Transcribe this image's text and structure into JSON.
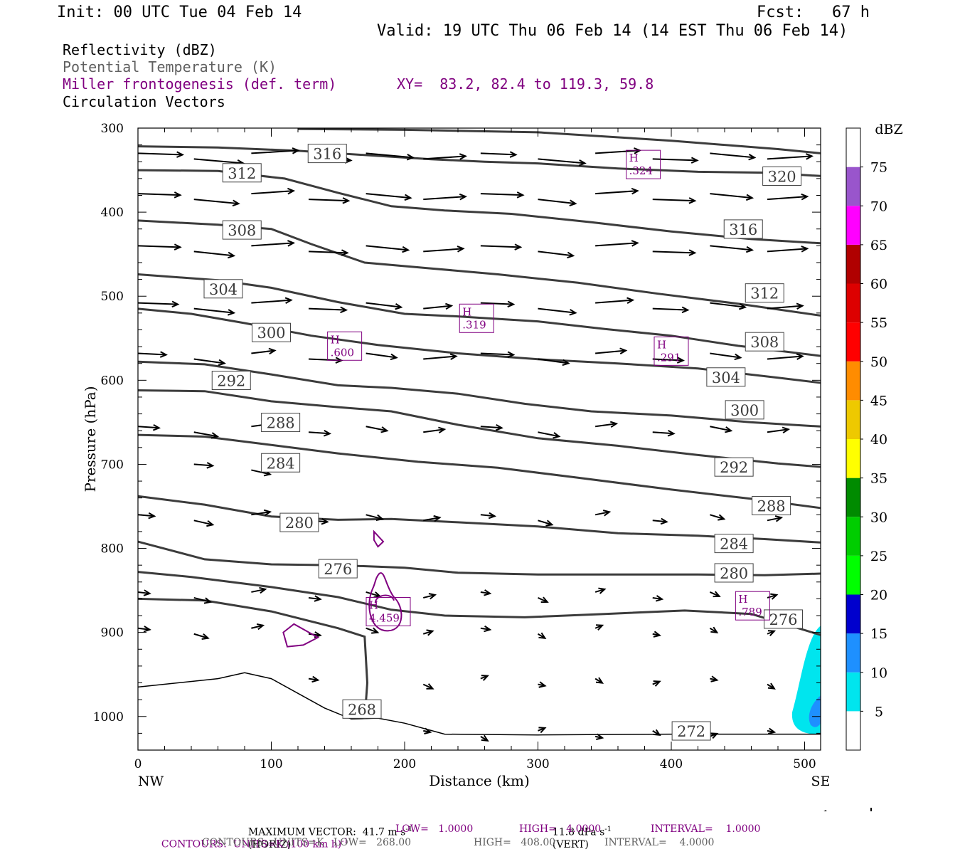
{
  "header": {
    "init": "Init: 00 UTC Tue 04 Feb 14",
    "fcst": "Fcst:   67 h",
    "valid": "Valid: 19 UTC Thu 06 Feb 14 (14 EST Thu 06 Feb 14)"
  },
  "overlays": {
    "reflectivity": "Reflectivity (dBZ)",
    "theta": "Potential Temperature (K)",
    "frontogenesis": "Miller frontogenesis (def. term)",
    "xy": "XY=  83.2, 82.4 to 119.3, 59.8",
    "vectors": "Circulation Vectors"
  },
  "colors": {
    "theta": "#3c3c3c",
    "frontogenesis": "#800080",
    "vectors": "#000000"
  },
  "chart_data": {
    "type": "line",
    "title": "",
    "xlabel": "Distance (km)",
    "ylabel": "Pressure (hPa)",
    "x_range": [
      0,
      512
    ],
    "y_range": [
      1040,
      300
    ],
    "x_ticks": [
      "0",
      "100",
      "200",
      "300",
      "400",
      "500"
    ],
    "y_ticks": [
      "300",
      "400",
      "500",
      "600",
      "700",
      "800",
      "900",
      "1000"
    ],
    "x_end_labels": {
      "left": "NW",
      "right": "SE"
    },
    "colorbar": {
      "unit": "dBZ",
      "labels": [
        "5",
        "10",
        "15",
        "20",
        "25",
        "30",
        "35",
        "40",
        "45",
        "50",
        "55",
        "60",
        "65",
        "70",
        "75"
      ],
      "colors": [
        "#00e5ee",
        "#1e90ff",
        "#0000cd",
        "#00ff00",
        "#00cd00",
        "#008b00",
        "#ffff00",
        "#eec900",
        "#ff8c00",
        "#ff0000",
        "#dd0000",
        "#b00000",
        "#ff00ff",
        "#9955cc",
        "#ffffff"
      ]
    },
    "theta_contours": [
      {
        "label": "316",
        "points": [
          [
            0,
            321.7
          ],
          [
            60,
            323
          ],
          [
            120,
            327
          ],
          [
            180,
            333
          ],
          [
            220,
            337
          ],
          [
            260,
            340
          ],
          [
            300,
            342
          ],
          [
            360,
            348
          ],
          [
            420,
            352
          ],
          [
            470,
            353
          ],
          [
            512,
            357
          ]
        ],
        "label_at": [
          142,
          331
        ]
      },
      {
        "label": "312",
        "points": [
          [
            0,
            350
          ],
          [
            60,
            351
          ],
          [
            110,
            360
          ],
          [
            150,
            377
          ],
          [
            190,
            393
          ],
          [
            230,
            398
          ],
          [
            280,
            402
          ],
          [
            340,
            412
          ],
          [
            400,
            423
          ],
          [
            460,
            432
          ],
          [
            512,
            437
          ]
        ],
        "label_at": [
          78,
          354
        ]
      },
      {
        "label": "308",
        "points": [
          [
            0,
            410
          ],
          [
            60,
            415
          ],
          [
            100,
            420
          ],
          [
            130,
            438
          ],
          [
            170,
            460
          ],
          [
            220,
            467
          ],
          [
            270,
            474
          ],
          [
            330,
            484
          ],
          [
            390,
            497
          ],
          [
            450,
            509
          ],
          [
            512,
            523
          ]
        ],
        "label_at": [
          78,
          422
        ]
      },
      {
        "label": "304",
        "points": [
          [
            0,
            474
          ],
          [
            60,
            481
          ],
          [
            100,
            490
          ],
          [
            150,
            507
          ],
          [
            200,
            521
          ],
          [
            240,
            524
          ],
          [
            300,
            530
          ],
          [
            350,
            539
          ],
          [
            400,
            547
          ],
          [
            450,
            559
          ],
          [
            512,
            571
          ]
        ],
        "label_at": [
          64,
          492
        ]
      },
      {
        "label": "320",
        "points": [
          [
            120,
            301
          ],
          [
            200,
            302
          ],
          [
            300,
            305
          ],
          [
            400,
            315
          ],
          [
            480,
            325
          ],
          [
            512,
            330
          ]
        ],
        "label_at": [
          483,
          358
        ]
      },
      {
        "label": "300",
        "points": [
          [
            0,
            515
          ],
          [
            40,
            521
          ],
          [
            80,
            532
          ],
          [
            130,
            547
          ],
          [
            180,
            558
          ],
          [
            240,
            568
          ],
          [
            300,
            575
          ],
          [
            360,
            580
          ],
          [
            420,
            586
          ],
          [
            480,
            597
          ],
          [
            512,
            603
          ]
        ],
        "label_at": [
          100,
          544
        ]
      },
      {
        "label": "292",
        "points": [
          [
            0,
            578
          ],
          [
            50,
            581
          ],
          [
            100,
            593
          ],
          [
            150,
            606
          ],
          [
            190,
            609
          ],
          [
            240,
            616
          ],
          [
            290,
            628
          ],
          [
            340,
            637
          ],
          [
            400,
            642
          ],
          [
            460,
            650
          ],
          [
            512,
            655
          ]
        ],
        "label_at": [
          70,
          601
        ]
      },
      {
        "label": "288",
        "points": [
          [
            0,
            612
          ],
          [
            50,
            613
          ],
          [
            100,
            625
          ],
          [
            150,
            632
          ],
          [
            190,
            637
          ],
          [
            240,
            653
          ],
          [
            300,
            669
          ],
          [
            360,
            678
          ],
          [
            420,
            689
          ],
          [
            480,
            699
          ],
          [
            512,
            703
          ]
        ],
        "label_at": [
          107,
          651
        ]
      },
      {
        "label": "284",
        "points": [
          [
            0,
            665
          ],
          [
            50,
            667
          ],
          [
            100,
            677
          ],
          [
            150,
            687
          ],
          [
            210,
            697
          ],
          [
            270,
            704
          ],
          [
            330,
            716
          ],
          [
            400,
            730
          ],
          [
            460,
            741
          ],
          [
            512,
            752
          ]
        ],
        "label_at": [
          107,
          699
        ]
      },
      {
        "label": "280",
        "points": [
          [
            0,
            738
          ],
          [
            50,
            748
          ],
          [
            100,
            762
          ],
          [
            150,
            766
          ],
          [
            190,
            765
          ],
          [
            240,
            769
          ],
          [
            300,
            774
          ],
          [
            360,
            782
          ],
          [
            420,
            785
          ],
          [
            470,
            789
          ],
          [
            512,
            793
          ]
        ],
        "label_at": [
          121,
          770
        ]
      },
      {
        "label": "276",
        "points": [
          [
            0,
            792
          ],
          [
            50,
            813
          ],
          [
            100,
            819
          ],
          [
            150,
            820
          ],
          [
            200,
            823
          ],
          [
            240,
            829
          ],
          [
            300,
            831
          ],
          [
            360,
            831
          ],
          [
            420,
            831
          ],
          [
            470,
            832
          ],
          [
            512,
            830
          ]
        ],
        "label_at": [
          150,
          825
        ]
      },
      {
        "label": "272",
        "points": [
          [
            0,
            828
          ],
          [
            40,
            834
          ],
          [
            100,
            846
          ],
          [
            150,
            858
          ],
          [
            190,
            873
          ],
          [
            230,
            880
          ],
          [
            290,
            882
          ],
          [
            350,
            878
          ],
          [
            410,
            874
          ],
          [
            460,
            878
          ],
          [
            512,
            903
          ]
        ],
        "label_at": [
          415,
          1018
        ]
      },
      {
        "label": "268",
        "points": [
          [
            0,
            860
          ],
          [
            50,
            862
          ],
          [
            100,
            875
          ],
          [
            150,
            895
          ],
          [
            170,
            905
          ],
          [
            172,
            960
          ],
          [
            170,
            1003
          ]
        ],
        "label_at": [
          168,
          992
        ]
      }
    ],
    "extra_theta_labels": [
      {
        "label": "316",
        "at": [
          454,
          421
        ]
      },
      {
        "label": "312",
        "at": [
          470,
          497
        ]
      },
      {
        "label": "308",
        "at": [
          470,
          555
        ]
      },
      {
        "label": "304",
        "at": [
          441,
          597
        ]
      },
      {
        "label": "300",
        "at": [
          455,
          636
        ]
      },
      {
        "label": "292",
        "at": [
          447,
          704
        ]
      },
      {
        "label": "288",
        "at": [
          475,
          750
        ]
      },
      {
        "label": "284",
        "at": [
          447,
          795
        ]
      },
      {
        "label": "280",
        "at": [
          447,
          830
        ]
      },
      {
        "label": "276",
        "at": [
          484,
          885
        ]
      }
    ],
    "surface_line": [
      [
        0,
        965
      ],
      [
        60,
        955
      ],
      [
        80,
        948
      ],
      [
        100,
        955
      ],
      [
        140,
        990
      ],
      [
        160,
        1003
      ],
      [
        180,
        1002
      ],
      [
        200,
        1008
      ],
      [
        230,
        1021
      ],
      [
        300,
        1022
      ],
      [
        400,
        1021
      ],
      [
        512,
        1021
      ]
    ],
    "frontogenesis_maxima": [
      {
        "label": "H",
        "value": ".324",
        "at": [
          379,
          345
        ]
      },
      {
        "label": "H",
        "value": ".319",
        "at": [
          254,
          528
        ]
      },
      {
        "label": "H",
        "value": ".600",
        "at": [
          155,
          561
        ]
      },
      {
        "label": "H",
        "value": ".291",
        "at": [
          400,
          567
        ]
      },
      {
        "label": "H",
        "value": ".789",
        "at": [
          461,
          870
        ]
      },
      {
        "label": "H",
        "value": "4.459",
        "at": [
          184,
          877
        ]
      }
    ],
    "reflectivity_area": {
      "values": [
        "5",
        "10"
      ],
      "location": "lower right, ~900-1030 hPa, 490-512 km"
    },
    "vector_reference": {
      "horiz": "41.7 m s⁻¹",
      "vert": "11.8 dPa s⁻¹"
    }
  },
  "footer": {
    "max_vector": "MAXIMUM VECTOR:  41.7 m s",
    "horiz": "(HORIZ)",
    "vert_val": "11.8 dPa s",
    "vert": "(VERT)",
    "contours_purple": "CONTOURS:  UNITS=K (100 km h)",
    "low_purple": "LOW=   1.0000",
    "high_purple": "HIGH=   4.0000",
    "interval_purple": "INTERVAL=    1.0000",
    "contours_black": "CONTOURS:  UNITS=K   LOW=   268.00",
    "high_black": "HIGH=   408.00",
    "interval_black": "INTERVAL=    4.0000"
  }
}
